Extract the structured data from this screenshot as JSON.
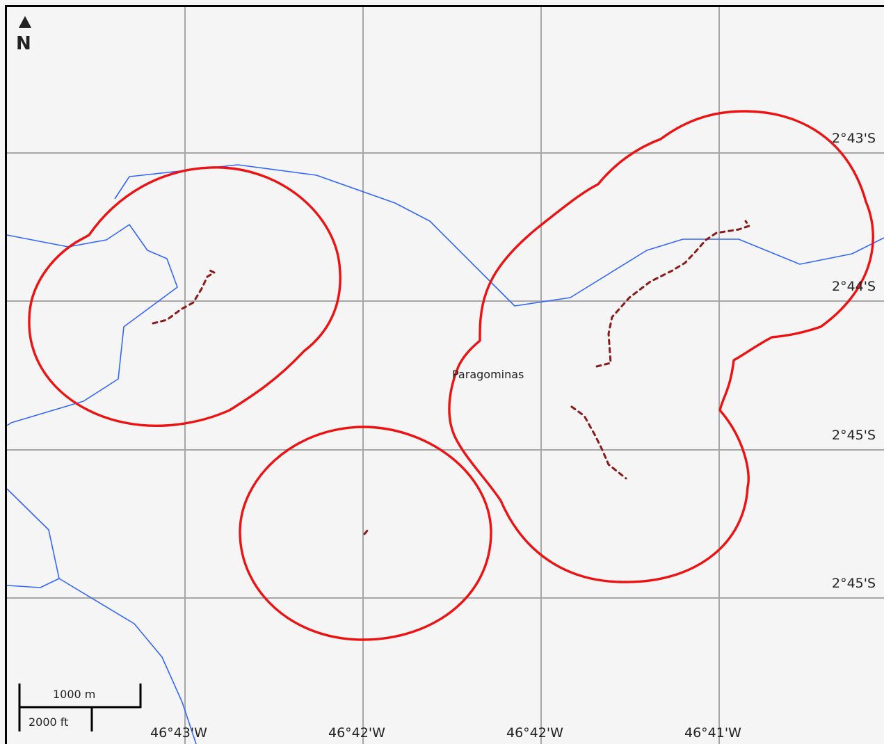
{
  "map": {
    "place_label": "Paragominas",
    "north_label": "N",
    "scale": {
      "metric": "1000 m",
      "imperial": "2000 ft"
    },
    "lat_labels": [
      "2°43'S",
      "2°44'S",
      "2°45'S",
      "2°45'S"
    ],
    "lon_labels": [
      "46°43'W",
      "46°42'W",
      "46°42'W",
      "46°41'W"
    ],
    "colors": {
      "background": "#f5f5f5",
      "frame": "#000000",
      "grid": "#a6a6a6",
      "river": "#3366ff",
      "buffer": "#ee1111",
      "track": "#8b1a1a",
      "text": "#222222"
    }
  }
}
